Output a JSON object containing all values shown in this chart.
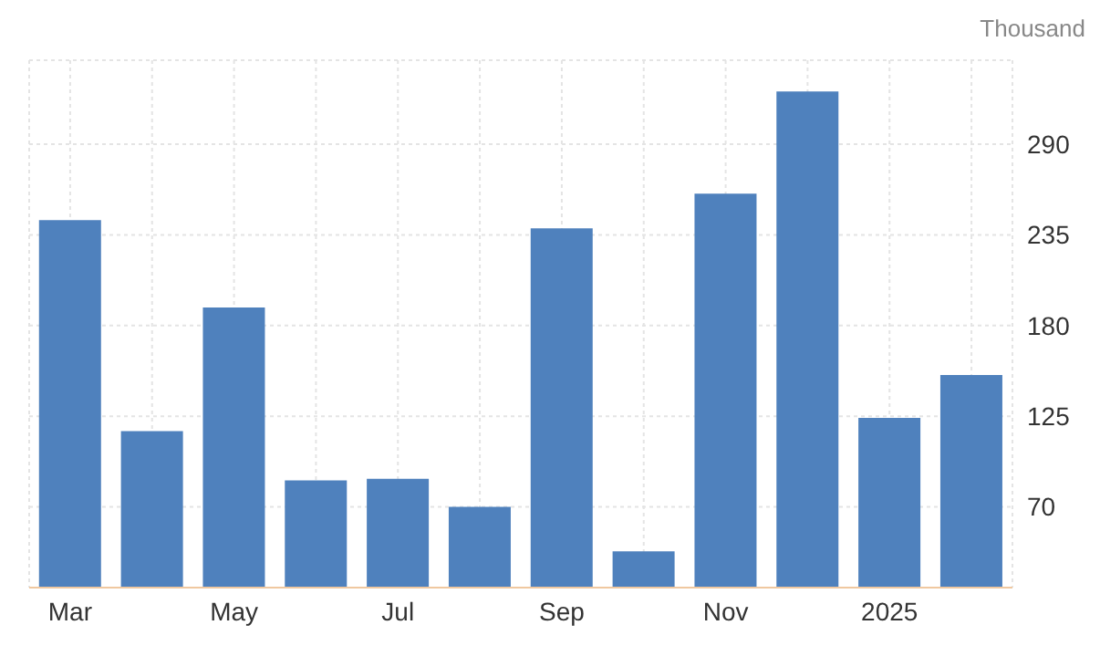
{
  "chart_data": {
    "type": "bar",
    "ylabel": "Thousand",
    "categories": [
      "Mar",
      null,
      "May",
      null,
      "Jul",
      null,
      "Sep",
      null,
      "Nov",
      null,
      "2025",
      null
    ],
    "values": [
      244,
      116,
      191,
      86,
      87,
      70,
      239,
      43,
      260,
      322,
      124,
      150
    ],
    "color": "#4f81bd",
    "ylim": [
      21,
      341
    ],
    "yticks": [
      70,
      125,
      180,
      235,
      290
    ],
    "grid": true
  }
}
